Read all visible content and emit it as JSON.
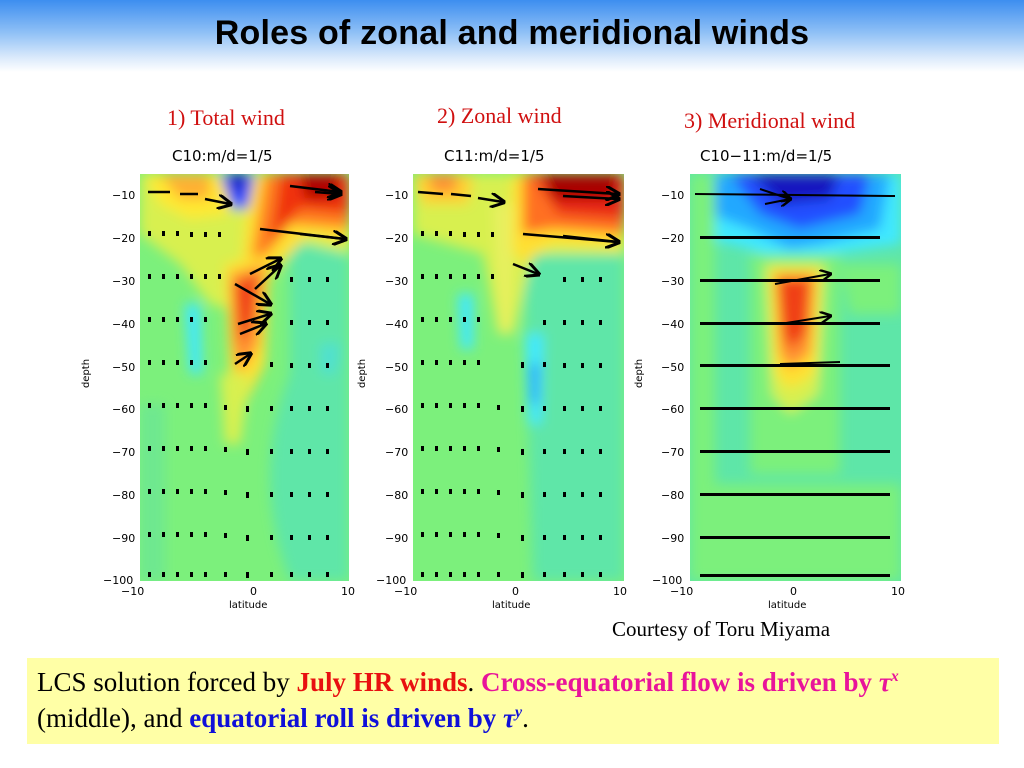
{
  "slide": {
    "title": "Roles of zonal and meridional winds",
    "credit": "Courtesy of Toru Miyama"
  },
  "panels": [
    {
      "caption": "1) Total wind",
      "plot_title": "C10:m/d=1/5"
    },
    {
      "caption": "2) Zonal wind",
      "plot_title": "C11:m/d=1/5"
    },
    {
      "caption": "3) Meridional wind",
      "plot_title": "C10−11:m/d=1/5"
    }
  ],
  "axes": {
    "xlabel": "latitude",
    "ylabel": "depth",
    "x_ticks": [
      "−10",
      "0",
      "10"
    ],
    "y_ticks": [
      "−10",
      "−20",
      "−30",
      "−40",
      "−50",
      "−60",
      "−70",
      "−80",
      "−90",
      "−100"
    ]
  },
  "summary": {
    "part1": "LCS solution forced by ",
    "part2": "July HR winds",
    "part3": ".  ",
    "part4": "Cross-equatorial flow is driven by ",
    "part5": "τ",
    "part6": "x",
    "part7": " (middle), and ",
    "part8": "equatorial roll is driven by ",
    "part9": "τ",
    "part10": "y",
    "part11": "."
  },
  "colors": {
    "header_top": "#3d8ef0",
    "caption": "#d01010",
    "highlight_box": "#ffffa6",
    "emph_red": "#e81010",
    "emph_magenta": "#e8149a",
    "emph_blue": "#1010d8"
  }
}
